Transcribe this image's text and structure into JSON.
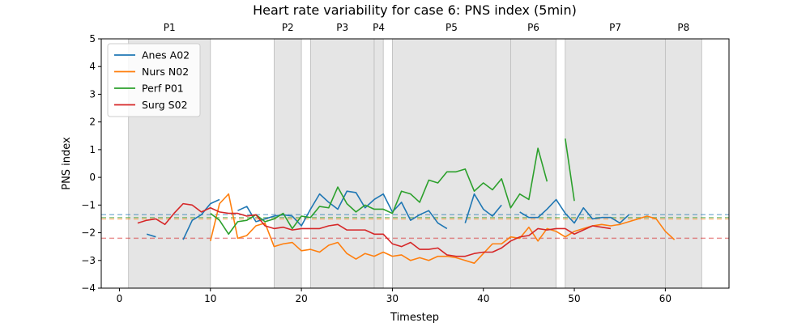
{
  "chart_data": {
    "type": "line",
    "title": "Heart rate variability for case 6: PNS index (5min)",
    "xlabel": "Timestep",
    "ylabel": "PNS index",
    "xlim": [
      -2,
      67
    ],
    "ylim": [
      -4,
      5
    ],
    "x_ticks": [
      0,
      10,
      20,
      30,
      40,
      50,
      60
    ],
    "y_ticks": [
      -4,
      -3,
      -2,
      -1,
      0,
      1,
      2,
      3,
      4,
      5
    ],
    "grid": false,
    "legend": "top-left",
    "phases": [
      {
        "label": "P1",
        "start": 1,
        "end": 10
      },
      {
        "label": "P2",
        "start": 17,
        "end": 20
      },
      {
        "label": "P3",
        "start": 21,
        "end": 28
      },
      {
        "label": "P4",
        "start": 28,
        "end": 29
      },
      {
        "label": "P5",
        "start": 30,
        "end": 43
      },
      {
        "label": "P6",
        "start": 43,
        "end": 48
      },
      {
        "label": "P7",
        "start": 49,
        "end": 60
      },
      {
        "label": "P8",
        "start": 60,
        "end": 64
      }
    ],
    "phase_color": "#e5e5e5",
    "phase_border_color": "#bbbbbb",
    "series": [
      {
        "name": "Anes A02",
        "color": "#1f77b4",
        "baseline": -1.35,
        "x": [
          3,
          4,
          5,
          6,
          7,
          8,
          9,
          10,
          11,
          12,
          13,
          14,
          15,
          16,
          17,
          18,
          19,
          20,
          21,
          22,
          23,
          24,
          25,
          26,
          27,
          28,
          29,
          30,
          31,
          32,
          33,
          34,
          35,
          36,
          37,
          38,
          39,
          40,
          41,
          42,
          43,
          44,
          45,
          46,
          47,
          48,
          49,
          50,
          51,
          52,
          53,
          54,
          55,
          56
        ],
        "y": [
          -2.05,
          -2.15,
          null,
          null,
          -2.25,
          -1.55,
          -1.35,
          -0.95,
          -0.8,
          null,
          -1.2,
          -1.05,
          -1.6,
          -1.5,
          -1.4,
          -1.35,
          -1.4,
          -1.75,
          -1.15,
          -0.6,
          -0.9,
          -1.15,
          -0.5,
          -0.55,
          -1.1,
          -0.8,
          -0.6,
          -1.25,
          -0.9,
          -1.55,
          -1.35,
          -1.2,
          -1.65,
          -1.85,
          null,
          -1.65,
          -0.6,
          -1.15,
          -1.4,
          -1.0,
          null,
          -1.25,
          -1.45,
          -1.45,
          -1.15,
          -0.8,
          -1.3,
          -1.65,
          -1.1,
          -1.5,
          -1.45,
          -1.45,
          -1.65,
          -1.35
        ]
      },
      {
        "name": "Nurs N02",
        "color": "#ff7f0e",
        "baseline": -1.5,
        "x": [
          10,
          11,
          12,
          13,
          14,
          15,
          16,
          17,
          18,
          19,
          20,
          21,
          22,
          23,
          24,
          25,
          26,
          27,
          28,
          29,
          30,
          31,
          32,
          33,
          34,
          35,
          36,
          37,
          38,
          39,
          40,
          41,
          42,
          43,
          44,
          45,
          46,
          47,
          48,
          49,
          50,
          51,
          52,
          53,
          54,
          55,
          56,
          57,
          58,
          59,
          60,
          61
        ],
        "y": [
          -2.3,
          -0.95,
          -0.6,
          -2.2,
          -2.1,
          -1.75,
          -1.65,
          -2.5,
          -2.4,
          -2.35,
          -2.65,
          -2.6,
          -2.7,
          -2.45,
          -2.35,
          -2.75,
          -2.95,
          -2.75,
          -2.85,
          -2.7,
          -2.85,
          -2.8,
          -3.0,
          -2.9,
          -3.0,
          -2.85,
          -2.85,
          -2.9,
          -3.0,
          -3.1,
          -2.75,
          -2.4,
          -2.4,
          -2.15,
          -2.2,
          -1.8,
          -2.3,
          -1.85,
          -1.95,
          -2.15,
          -1.95,
          -1.85,
          -1.75,
          -1.7,
          -1.75,
          -1.7,
          -1.6,
          -1.5,
          -1.4,
          -1.5,
          -1.95,
          -2.25
        ]
      },
      {
        "name": "Perf P01",
        "color": "#2ca02c",
        "baseline": -1.45,
        "x": [
          10,
          11,
          12,
          13,
          14,
          15,
          16,
          17,
          18,
          19,
          20,
          21,
          22,
          23,
          24,
          25,
          26,
          27,
          28,
          29,
          30,
          31,
          32,
          33,
          34,
          35,
          36,
          37,
          38,
          39,
          40,
          41,
          42,
          43,
          44,
          45,
          46,
          47,
          48,
          49,
          50
        ],
        "y": [
          -1.3,
          -1.55,
          -2.05,
          -1.6,
          -1.55,
          -1.35,
          -1.6,
          -1.5,
          -1.3,
          -1.85,
          -1.4,
          -1.45,
          -1.05,
          -1.1,
          -0.35,
          -0.95,
          -1.25,
          -1.0,
          -1.15,
          -1.15,
          -1.3,
          -0.5,
          -0.6,
          -0.9,
          -0.1,
          -0.2,
          0.2,
          0.2,
          0.3,
          -0.5,
          -0.2,
          -0.45,
          -0.05,
          -1.1,
          -0.6,
          -0.8,
          1.05,
          -0.15,
          null,
          1.4,
          -0.85
        ]
      },
      {
        "name": "Surg S02",
        "color": "#d62728",
        "baseline": -2.2,
        "x": [
          2,
          3,
          4,
          5,
          6,
          7,
          8,
          9,
          10,
          11,
          12,
          13,
          14,
          15,
          16,
          17,
          18,
          19,
          20,
          21,
          22,
          23,
          24,
          25,
          26,
          27,
          28,
          29,
          30,
          31,
          32,
          33,
          34,
          35,
          36,
          37,
          38,
          39,
          40,
          41,
          42,
          43,
          44,
          45,
          46,
          47,
          48,
          49,
          50,
          51,
          52,
          53,
          54
        ],
        "y": [
          -1.65,
          -1.55,
          -1.5,
          -1.7,
          -1.3,
          -0.95,
          -1.0,
          -1.25,
          -1.1,
          -1.25,
          -1.3,
          -1.3,
          -1.4,
          -1.35,
          -1.75,
          -1.85,
          -1.8,
          -1.9,
          -1.85,
          -1.85,
          -1.85,
          -1.75,
          -1.7,
          -1.9,
          -1.9,
          -1.9,
          -2.05,
          -2.05,
          -2.4,
          -2.5,
          -2.35,
          -2.6,
          -2.6,
          -2.55,
          -2.8,
          -2.85,
          -2.85,
          -2.75,
          -2.7,
          -2.7,
          -2.55,
          -2.3,
          -2.15,
          -2.1,
          -1.85,
          -1.9,
          -1.85,
          -1.85,
          -2.05,
          -1.9,
          -1.75,
          -1.8,
          -1.85
        ]
      }
    ]
  }
}
